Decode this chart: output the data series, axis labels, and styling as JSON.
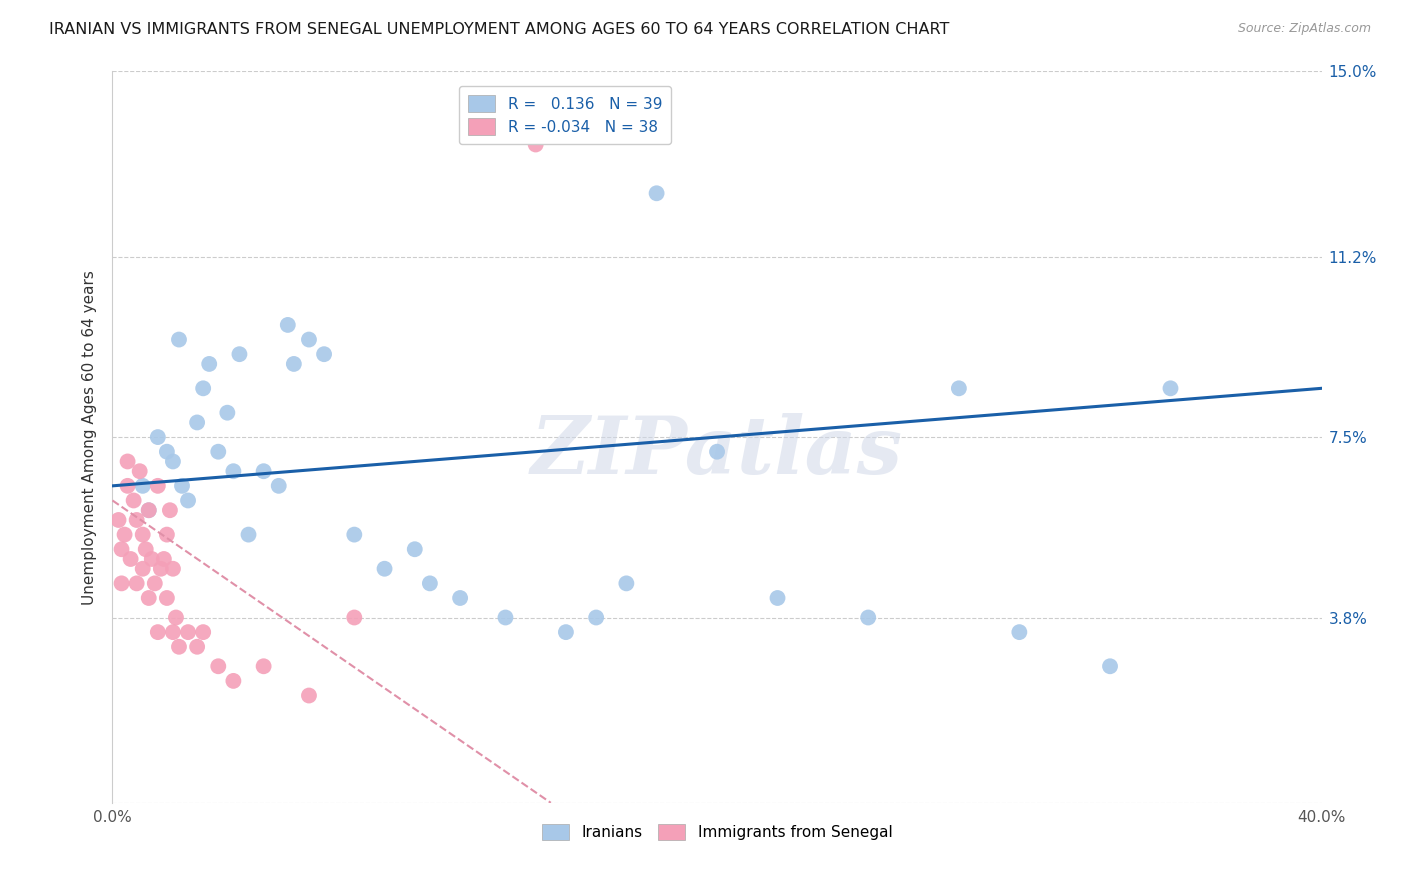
{
  "title": "IRANIAN VS IMMIGRANTS FROM SENEGAL UNEMPLOYMENT AMONG AGES 60 TO 64 YEARS CORRELATION CHART",
  "source": "Source: ZipAtlas.com",
  "ylabel": "Unemployment Among Ages 60 to 64 years",
  "xlim": [
    0.0,
    40.0
  ],
  "ylim": [
    0.0,
    15.0
  ],
  "xticks": [
    0.0,
    5.0,
    10.0,
    15.0,
    20.0,
    25.0,
    30.0,
    35.0,
    40.0
  ],
  "yticks": [
    0.0,
    3.8,
    7.5,
    11.2,
    15.0
  ],
  "legend_R1": "0.136",
  "legend_N1": "39",
  "legend_R2": "-0.034",
  "legend_N2": "38",
  "iranians_color": "#a8c8e8",
  "senegal_color": "#f4a0b8",
  "trend_iranian_color": "#1a5fa8",
  "trend_senegal_color": "#e090a8",
  "watermark": "ZIPatlas",
  "iranians_x": [
    1.0,
    1.5,
    2.0,
    2.2,
    2.5,
    2.8,
    3.0,
    3.2,
    3.5,
    3.8,
    4.0,
    4.2,
    4.5,
    5.0,
    5.5,
    5.8,
    6.5,
    7.0,
    8.0,
    9.0,
    10.0,
    10.5,
    11.5,
    13.0,
    15.0,
    16.0,
    17.0,
    18.0,
    20.0,
    22.0,
    25.0,
    28.0,
    30.0,
    33.0,
    35.0,
    1.2,
    1.8,
    2.3,
    6.0
  ],
  "iranians_y": [
    6.5,
    7.5,
    7.0,
    9.5,
    6.2,
    7.8,
    8.5,
    9.0,
    7.2,
    8.0,
    6.8,
    9.2,
    5.5,
    6.8,
    6.5,
    9.8,
    9.5,
    9.2,
    5.5,
    4.8,
    5.2,
    4.5,
    4.2,
    3.8,
    3.5,
    3.8,
    4.5,
    12.5,
    7.2,
    4.2,
    3.8,
    8.5,
    3.5,
    2.8,
    8.5,
    6.0,
    7.2,
    6.5,
    9.0
  ],
  "senegal_x": [
    0.2,
    0.3,
    0.3,
    0.4,
    0.5,
    0.5,
    0.6,
    0.7,
    0.8,
    0.8,
    0.9,
    1.0,
    1.0,
    1.1,
    1.2,
    1.2,
    1.3,
    1.4,
    1.5,
    1.5,
    1.6,
    1.7,
    1.8,
    1.8,
    1.9,
    2.0,
    2.0,
    2.1,
    2.2,
    2.5,
    2.8,
    3.0,
    3.5,
    4.0,
    5.0,
    6.5,
    8.0,
    14.0
  ],
  "senegal_y": [
    5.8,
    5.2,
    4.5,
    5.5,
    6.5,
    7.0,
    5.0,
    6.2,
    5.8,
    4.5,
    6.8,
    5.5,
    4.8,
    5.2,
    6.0,
    4.2,
    5.0,
    4.5,
    3.5,
    6.5,
    4.8,
    5.0,
    4.2,
    5.5,
    6.0,
    3.5,
    4.8,
    3.8,
    3.2,
    3.5,
    3.2,
    3.5,
    2.8,
    2.5,
    2.8,
    2.2,
    3.8,
    13.5
  ],
  "trend_iranian_x0": 0.0,
  "trend_iranian_x1": 40.0,
  "trend_iranian_y0": 6.5,
  "trend_iranian_y1": 8.5,
  "trend_senegal_x0": 0.0,
  "trend_senegal_x1": 14.5,
  "trend_senegal_y0": 6.2,
  "trend_senegal_y1": 0.0
}
